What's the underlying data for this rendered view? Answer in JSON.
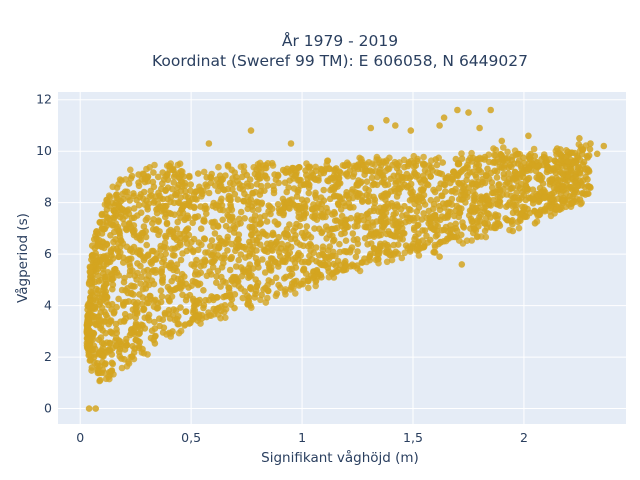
{
  "chart_data": {
    "type": "scatter",
    "title_lines": [
      "År 1979 - 2019",
      "Koordinat (Sweref 99 TM): E 606058, N 6449027"
    ],
    "xlabel": "Signifikant våghöjd (m)",
    "ylabel": "Vågperiod (s)",
    "xlim": [
      -0.1,
      2.46
    ],
    "ylim": [
      -0.6,
      12.3
    ],
    "x_ticks": [
      0,
      0.5,
      1,
      1.5,
      2
    ],
    "x_tick_labels": [
      "0",
      "0,5",
      "1",
      "1,5",
      "2"
    ],
    "y_ticks": [
      0,
      2,
      4,
      6,
      8,
      10,
      12
    ],
    "y_tick_labels": [
      "0",
      "2",
      "4",
      "6",
      "8",
      "10",
      "12"
    ],
    "grid": true,
    "colors": {
      "marker": "#D4A520",
      "plot_bg": "#E5ECF6",
      "grid": "#ffffff",
      "text": "#2a3f5f"
    },
    "cloud_envelope": {
      "x": [
        0.03,
        0.05,
        0.1,
        0.15,
        0.2,
        0.3,
        0.4,
        0.5,
        0.6,
        0.7,
        0.8,
        0.9,
        1.0,
        1.1,
        1.2,
        1.3,
        1.4,
        1.5,
        1.6,
        1.7,
        1.8,
        1.9,
        2.0,
        2.1,
        2.2,
        2.3
      ],
      "lower": [
        2.4,
        1.6,
        1.2,
        1.5,
        1.8,
        2.3,
        2.9,
        3.3,
        3.6,
        3.9,
        4.2,
        4.5,
        4.8,
        5.1,
        5.4,
        5.7,
        5.9,
        6.1,
        6.3,
        6.6,
        6.8,
        7.0,
        7.3,
        7.6,
        7.9,
        8.3
      ],
      "upper": [
        3.6,
        6.2,
        7.8,
        8.6,
        9.0,
        9.2,
        9.3,
        9.3,
        9.2,
        9.3,
        9.3,
        9.3,
        9.4,
        9.4,
        9.5,
        9.5,
        9.6,
        9.6,
        9.7,
        9.7,
        9.8,
        9.9,
        9.9,
        9.9,
        10.0,
        10.2
      ]
    },
    "outliers": [
      {
        "x": 0.04,
        "y": 0.0
      },
      {
        "x": 0.07,
        "y": 0.0
      },
      {
        "x": 0.09,
        "y": 1.1
      },
      {
        "x": 0.04,
        "y": 2.7
      },
      {
        "x": 0.58,
        "y": 10.3
      },
      {
        "x": 0.77,
        "y": 10.8
      },
      {
        "x": 1.31,
        "y": 10.9
      },
      {
        "x": 1.38,
        "y": 11.2
      },
      {
        "x": 1.42,
        "y": 11.0
      },
      {
        "x": 1.49,
        "y": 10.8
      },
      {
        "x": 1.64,
        "y": 11.3
      },
      {
        "x": 1.7,
        "y": 11.6
      },
      {
        "x": 1.75,
        "y": 11.5
      },
      {
        "x": 1.8,
        "y": 10.9
      },
      {
        "x": 1.85,
        "y": 11.6
      },
      {
        "x": 1.62,
        "y": 11.0
      },
      {
        "x": 2.25,
        "y": 10.5
      },
      {
        "x": 2.3,
        "y": 10.3
      },
      {
        "x": 2.36,
        "y": 10.2
      },
      {
        "x": 2.33,
        "y": 9.9
      },
      {
        "x": 2.2,
        "y": 9.6
      },
      {
        "x": 2.12,
        "y": 7.8
      },
      {
        "x": 2.05,
        "y": 7.2
      },
      {
        "x": 1.95,
        "y": 6.9
      },
      {
        "x": 1.72,
        "y": 5.6
      },
      {
        "x": 1.62,
        "y": 5.9
      },
      {
        "x": 1.9,
        "y": 10.4
      },
      {
        "x": 2.02,
        "y": 10.6
      },
      {
        "x": 2.15,
        "y": 10.1
      },
      {
        "x": 0.95,
        "y": 10.3
      }
    ]
  }
}
